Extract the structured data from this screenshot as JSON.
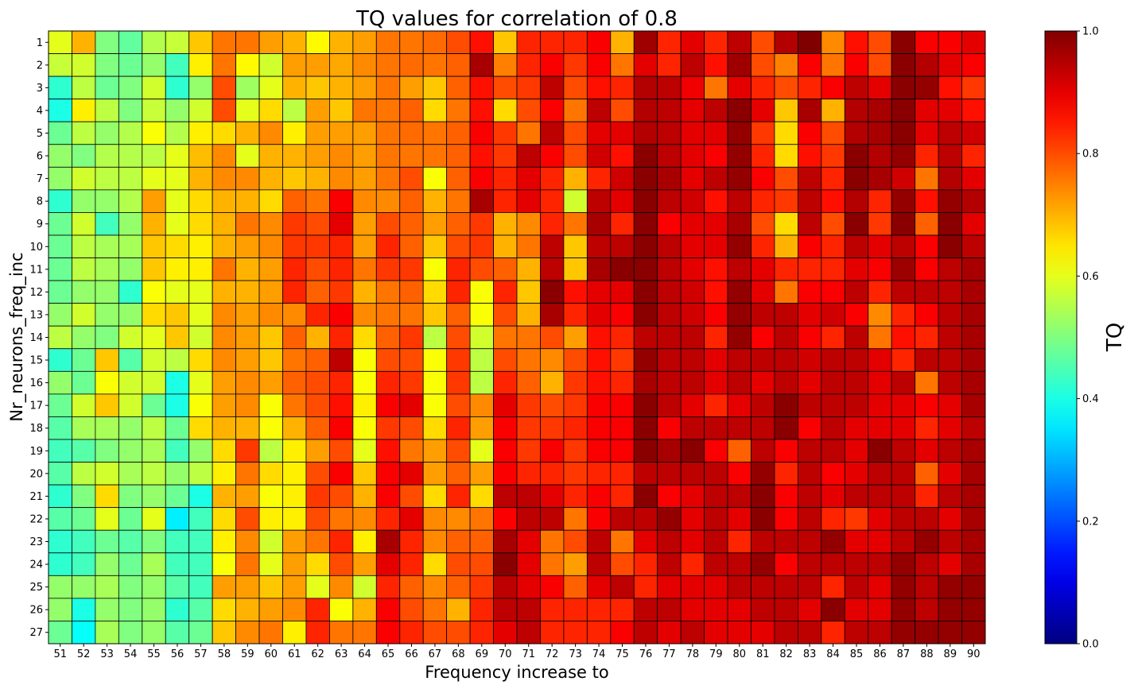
{
  "chart_data": {
    "type": "heatmap",
    "title": "TQ values for correlation of 0.8",
    "xlabel": "Frequency increase to",
    "ylabel": "Nr_neurons_freq_inc",
    "colorbar_label": "TQ",
    "colormap": "jet",
    "vmin": 0,
    "vmax": 1,
    "colorbar_ticks": [
      "0.0",
      "0.2",
      "0.4",
      "0.6",
      "0.8",
      "1.0"
    ],
    "x_categories": [
      51,
      52,
      53,
      54,
      55,
      56,
      57,
      58,
      59,
      60,
      61,
      62,
      63,
      64,
      65,
      66,
      67,
      68,
      69,
      70,
      71,
      72,
      73,
      74,
      75,
      76,
      77,
      78,
      79,
      80,
      81,
      82,
      83,
      84,
      85,
      86,
      87,
      88,
      89,
      90
    ],
    "y_categories": [
      1,
      2,
      3,
      4,
      5,
      6,
      7,
      8,
      9,
      10,
      11,
      12,
      13,
      14,
      15,
      16,
      17,
      18,
      19,
      20,
      21,
      22,
      23,
      24,
      25,
      26,
      27
    ],
    "values": [
      [
        0.6,
        0.7,
        0.5,
        0.47,
        0.55,
        0.57,
        0.68,
        0.76,
        0.76,
        0.72,
        0.7,
        0.63,
        0.7,
        0.72,
        0.76,
        0.76,
        0.77,
        0.8,
        0.86,
        0.68,
        0.84,
        0.84,
        0.84,
        0.88,
        0.7,
        0.97,
        0.84,
        0.9,
        0.84,
        0.94,
        0.8,
        0.95,
        1.0,
        0.74,
        0.86,
        0.8,
        0.99,
        0.88,
        0.88,
        0.9
      ],
      [
        0.57,
        0.58,
        0.5,
        0.48,
        0.52,
        0.44,
        0.64,
        0.76,
        0.63,
        0.58,
        0.72,
        0.72,
        0.71,
        0.74,
        0.76,
        0.77,
        0.76,
        0.78,
        0.96,
        0.75,
        0.84,
        0.88,
        0.82,
        0.88,
        0.76,
        0.9,
        0.84,
        0.94,
        0.86,
        0.97,
        0.8,
        0.75,
        0.88,
        0.76,
        0.88,
        0.8,
        0.99,
        0.95,
        0.9,
        0.88
      ],
      [
        0.42,
        0.56,
        0.48,
        0.5,
        0.58,
        0.42,
        0.52,
        0.8,
        0.53,
        0.6,
        0.7,
        0.68,
        0.7,
        0.72,
        0.76,
        0.72,
        0.68,
        0.78,
        0.86,
        0.8,
        0.82,
        0.94,
        0.8,
        0.86,
        0.84,
        0.95,
        0.94,
        0.89,
        0.76,
        0.9,
        0.84,
        0.8,
        0.84,
        0.88,
        0.94,
        0.9,
        0.99,
        0.98,
        0.86,
        0.82
      ],
      [
        0.4,
        0.64,
        0.56,
        0.5,
        0.57,
        0.52,
        0.58,
        0.8,
        0.6,
        0.66,
        0.56,
        0.72,
        0.68,
        0.76,
        0.76,
        0.78,
        0.66,
        0.76,
        0.86,
        0.66,
        0.8,
        0.88,
        0.76,
        0.94,
        0.8,
        0.95,
        0.94,
        0.9,
        0.94,
        0.99,
        0.9,
        0.68,
        0.96,
        0.7,
        0.95,
        0.96,
        0.99,
        0.9,
        0.9,
        0.86
      ],
      [
        0.48,
        0.56,
        0.52,
        0.55,
        0.62,
        0.55,
        0.64,
        0.66,
        0.7,
        0.74,
        0.64,
        0.72,
        0.72,
        0.72,
        0.76,
        0.77,
        0.76,
        0.78,
        0.88,
        0.82,
        0.76,
        0.94,
        0.8,
        0.9,
        0.9,
        0.95,
        0.94,
        0.9,
        0.9,
        0.98,
        0.82,
        0.66,
        0.88,
        0.8,
        0.95,
        0.96,
        0.99,
        0.9,
        0.94,
        0.92
      ],
      [
        0.52,
        0.5,
        0.55,
        0.55,
        0.56,
        0.6,
        0.69,
        0.74,
        0.6,
        0.7,
        0.7,
        0.72,
        0.74,
        0.72,
        0.76,
        0.76,
        0.76,
        0.78,
        0.86,
        0.82,
        0.94,
        0.88,
        0.8,
        0.92,
        0.86,
        0.99,
        0.94,
        0.9,
        0.88,
        0.98,
        0.84,
        0.66,
        0.86,
        0.82,
        0.99,
        0.95,
        0.98,
        0.84,
        0.94,
        0.84
      ],
      [
        0.52,
        0.58,
        0.56,
        0.56,
        0.6,
        0.6,
        0.7,
        0.74,
        0.74,
        0.7,
        0.68,
        0.7,
        0.74,
        0.72,
        0.76,
        0.8,
        0.62,
        0.78,
        0.88,
        0.84,
        0.9,
        0.84,
        0.7,
        0.84,
        0.92,
        0.99,
        0.96,
        0.9,
        0.94,
        0.98,
        0.88,
        0.8,
        0.94,
        0.84,
        0.99,
        0.96,
        0.92,
        0.76,
        0.95,
        0.9
      ],
      [
        0.42,
        0.52,
        0.52,
        0.55,
        0.72,
        0.6,
        0.66,
        0.7,
        0.7,
        0.66,
        0.78,
        0.76,
        0.88,
        0.74,
        0.74,
        0.78,
        0.7,
        0.76,
        0.96,
        0.84,
        0.9,
        0.84,
        0.58,
        0.94,
        0.9,
        0.99,
        0.94,
        0.92,
        0.86,
        0.94,
        0.84,
        0.82,
        0.94,
        0.86,
        0.95,
        0.84,
        0.98,
        0.86,
        0.98,
        0.95
      ],
      [
        0.48,
        0.58,
        0.44,
        0.52,
        0.7,
        0.6,
        0.66,
        0.7,
        0.76,
        0.74,
        0.82,
        0.8,
        0.9,
        0.72,
        0.8,
        0.78,
        0.72,
        0.78,
        0.82,
        0.7,
        0.74,
        0.84,
        0.76,
        0.96,
        0.84,
        0.99,
        0.88,
        0.9,
        0.9,
        0.96,
        0.8,
        0.66,
        0.94,
        0.8,
        0.99,
        0.82,
        0.99,
        0.78,
        0.99,
        0.9
      ],
      [
        0.48,
        0.56,
        0.54,
        0.54,
        0.68,
        0.66,
        0.64,
        0.7,
        0.72,
        0.74,
        0.82,
        0.82,
        0.84,
        0.72,
        0.84,
        0.78,
        0.68,
        0.8,
        0.82,
        0.7,
        0.76,
        0.94,
        0.68,
        0.94,
        0.94,
        0.99,
        0.94,
        0.9,
        0.9,
        0.98,
        0.84,
        0.7,
        0.88,
        0.84,
        0.94,
        0.9,
        0.94,
        0.88,
        0.99,
        0.94
      ],
      [
        0.48,
        0.56,
        0.54,
        0.52,
        0.68,
        0.64,
        0.64,
        0.76,
        0.7,
        0.72,
        0.84,
        0.8,
        0.84,
        0.76,
        0.82,
        0.82,
        0.62,
        0.84,
        0.8,
        0.78,
        0.7,
        0.94,
        0.68,
        0.96,
        0.99,
        0.99,
        0.94,
        0.9,
        0.86,
        0.94,
        0.9,
        0.84,
        0.84,
        0.84,
        0.9,
        0.88,
        0.97,
        0.88,
        0.94,
        0.96
      ],
      [
        0.48,
        0.52,
        0.52,
        0.42,
        0.62,
        0.6,
        0.6,
        0.7,
        0.7,
        0.72,
        0.84,
        0.78,
        0.82,
        0.7,
        0.76,
        0.78,
        0.66,
        0.84,
        0.62,
        0.84,
        0.68,
        0.99,
        0.86,
        0.9,
        0.9,
        0.99,
        0.94,
        0.92,
        0.86,
        0.98,
        0.9,
        0.76,
        0.88,
        0.88,
        0.94,
        0.84,
        0.94,
        0.94,
        0.94,
        0.96
      ],
      [
        0.52,
        0.58,
        0.52,
        0.52,
        0.66,
        0.68,
        0.6,
        0.74,
        0.72,
        0.74,
        0.74,
        0.84,
        0.88,
        0.74,
        0.76,
        0.76,
        0.68,
        0.78,
        0.62,
        0.8,
        0.7,
        0.96,
        0.84,
        0.9,
        0.88,
        0.99,
        0.94,
        0.92,
        0.88,
        0.98,
        0.94,
        0.94,
        0.9,
        0.92,
        0.88,
        0.74,
        0.84,
        0.88,
        0.94,
        0.96
      ],
      [
        0.56,
        0.52,
        0.5,
        0.58,
        0.6,
        0.68,
        0.58,
        0.74,
        0.72,
        0.68,
        0.78,
        0.7,
        0.84,
        0.66,
        0.78,
        0.82,
        0.56,
        0.8,
        0.58,
        0.76,
        0.76,
        0.8,
        0.72,
        0.86,
        0.84,
        0.94,
        0.94,
        0.94,
        0.84,
        0.98,
        0.88,
        0.94,
        0.88,
        0.84,
        0.94,
        0.76,
        0.86,
        0.84,
        0.94,
        0.96
      ],
      [
        0.42,
        0.48,
        0.68,
        0.46,
        0.58,
        0.56,
        0.66,
        0.74,
        0.72,
        0.68,
        0.76,
        0.78,
        0.94,
        0.62,
        0.8,
        0.8,
        0.62,
        0.82,
        0.56,
        0.8,
        0.76,
        0.74,
        0.8,
        0.86,
        0.82,
        0.98,
        0.94,
        0.94,
        0.9,
        0.94,
        0.94,
        0.94,
        0.92,
        0.94,
        0.94,
        0.9,
        0.84,
        0.94,
        0.94,
        0.96
      ],
      [
        0.52,
        0.48,
        0.62,
        0.58,
        0.58,
        0.4,
        0.6,
        0.72,
        0.74,
        0.72,
        0.78,
        0.8,
        0.84,
        0.62,
        0.84,
        0.82,
        0.62,
        0.82,
        0.56,
        0.84,
        0.78,
        0.7,
        0.82,
        0.86,
        0.84,
        0.96,
        0.94,
        0.94,
        0.9,
        0.94,
        0.9,
        0.94,
        0.9,
        0.94,
        0.94,
        0.9,
        0.94,
        0.76,
        0.94,
        0.96
      ],
      [
        0.48,
        0.58,
        0.68,
        0.58,
        0.48,
        0.4,
        0.62,
        0.72,
        0.74,
        0.62,
        0.76,
        0.8,
        0.86,
        0.64,
        0.88,
        0.9,
        0.62,
        0.8,
        0.74,
        0.9,
        0.82,
        0.8,
        0.82,
        0.88,
        0.88,
        0.99,
        0.94,
        0.9,
        0.84,
        0.9,
        0.94,
        0.99,
        0.94,
        0.94,
        0.94,
        0.9,
        0.9,
        0.88,
        0.9,
        0.96
      ],
      [
        0.46,
        0.54,
        0.54,
        0.52,
        0.56,
        0.48,
        0.66,
        0.7,
        0.7,
        0.62,
        0.7,
        0.78,
        0.88,
        0.62,
        0.82,
        0.8,
        0.66,
        0.84,
        0.72,
        0.88,
        0.82,
        0.82,
        0.84,
        0.88,
        0.88,
        0.99,
        0.88,
        0.94,
        0.94,
        0.94,
        0.94,
        0.99,
        0.88,
        0.94,
        0.9,
        0.9,
        0.9,
        0.84,
        0.9,
        0.94
      ],
      [
        0.44,
        0.46,
        0.5,
        0.52,
        0.54,
        0.44,
        0.52,
        0.66,
        0.82,
        0.56,
        0.64,
        0.72,
        0.8,
        0.6,
        0.86,
        0.76,
        0.72,
        0.8,
        0.6,
        0.88,
        0.82,
        0.88,
        0.82,
        0.88,
        0.88,
        0.99,
        0.96,
        0.99,
        0.88,
        0.78,
        0.94,
        0.88,
        0.94,
        0.94,
        0.9,
        0.99,
        0.94,
        0.9,
        0.94,
        0.96
      ],
      [
        0.46,
        0.56,
        0.58,
        0.54,
        0.56,
        0.52,
        0.56,
        0.64,
        0.76,
        0.66,
        0.64,
        0.8,
        0.88,
        0.68,
        0.88,
        0.9,
        0.72,
        0.78,
        0.72,
        0.88,
        0.84,
        0.84,
        0.82,
        0.84,
        0.84,
        0.94,
        0.94,
        0.94,
        0.94,
        0.88,
        0.98,
        0.84,
        0.94,
        0.88,
        0.9,
        0.94,
        0.94,
        0.78,
        0.9,
        0.96
      ],
      [
        0.42,
        0.5,
        0.66,
        0.5,
        0.52,
        0.48,
        0.4,
        0.7,
        0.72,
        0.62,
        0.64,
        0.82,
        0.8,
        0.7,
        0.88,
        0.8,
        0.66,
        0.84,
        0.66,
        0.94,
        0.94,
        0.9,
        0.84,
        0.88,
        0.84,
        0.99,
        0.88,
        0.9,
        0.94,
        0.94,
        0.99,
        0.88,
        0.94,
        0.9,
        0.94,
        0.94,
        0.94,
        0.84,
        0.94,
        0.96
      ],
      [
        0.46,
        0.48,
        0.6,
        0.48,
        0.6,
        0.36,
        0.44,
        0.66,
        0.8,
        0.64,
        0.64,
        0.8,
        0.76,
        0.74,
        0.84,
        0.9,
        0.74,
        0.74,
        0.76,
        0.88,
        0.94,
        0.94,
        0.76,
        0.88,
        0.94,
        0.94,
        0.98,
        0.9,
        0.94,
        0.9,
        0.99,
        0.88,
        0.94,
        0.84,
        0.82,
        0.9,
        0.94,
        0.94,
        0.9,
        0.96
      ],
      [
        0.42,
        0.44,
        0.48,
        0.46,
        0.5,
        0.44,
        0.44,
        0.64,
        0.74,
        0.58,
        0.72,
        0.76,
        0.84,
        0.64,
        0.96,
        0.84,
        0.74,
        0.78,
        0.78,
        0.96,
        0.9,
        0.76,
        0.8,
        0.94,
        0.76,
        0.9,
        0.94,
        0.9,
        0.94,
        0.84,
        0.94,
        0.94,
        0.94,
        0.98,
        0.9,
        0.9,
        0.94,
        0.98,
        0.94,
        0.96
      ],
      [
        0.42,
        0.44,
        0.52,
        0.48,
        0.54,
        0.44,
        0.44,
        0.62,
        0.76,
        0.6,
        0.72,
        0.66,
        0.8,
        0.72,
        0.9,
        0.84,
        0.66,
        0.8,
        0.8,
        0.99,
        0.9,
        0.76,
        0.72,
        0.94,
        0.8,
        0.84,
        0.94,
        0.84,
        0.94,
        0.94,
        0.98,
        0.88,
        0.94,
        0.94,
        0.94,
        0.94,
        0.98,
        0.94,
        0.9,
        0.96
      ],
      [
        0.52,
        0.52,
        0.54,
        0.5,
        0.52,
        0.46,
        0.44,
        0.72,
        0.72,
        0.68,
        0.72,
        0.6,
        0.74,
        0.58,
        0.84,
        0.78,
        0.74,
        0.78,
        0.82,
        0.94,
        0.9,
        0.88,
        0.78,
        0.9,
        0.94,
        0.84,
        0.9,
        0.9,
        0.9,
        0.94,
        0.94,
        0.94,
        0.94,
        0.84,
        0.94,
        0.9,
        0.98,
        0.94,
        0.98,
        0.98
      ],
      [
        0.52,
        0.4,
        0.52,
        0.5,
        0.52,
        0.42,
        0.46,
        0.66,
        0.7,
        0.72,
        0.74,
        0.84,
        0.62,
        0.7,
        0.88,
        0.8,
        0.76,
        0.7,
        0.84,
        0.94,
        0.94,
        0.84,
        0.84,
        0.84,
        0.84,
        0.94,
        0.94,
        0.9,
        0.9,
        0.9,
        0.94,
        0.94,
        0.9,
        0.99,
        0.9,
        0.9,
        0.98,
        0.94,
        0.98,
        0.98
      ],
      [
        0.48,
        0.38,
        0.54,
        0.5,
        0.52,
        0.46,
        0.48,
        0.68,
        0.74,
        0.76,
        0.64,
        0.84,
        0.76,
        0.76,
        0.88,
        0.84,
        0.8,
        0.8,
        0.84,
        0.9,
        0.94,
        0.84,
        0.84,
        0.84,
        0.88,
        0.94,
        0.9,
        0.94,
        0.9,
        0.9,
        0.9,
        0.94,
        0.94,
        0.84,
        0.94,
        0.94,
        0.98,
        0.98,
        0.98,
        0.98
      ]
    ]
  }
}
